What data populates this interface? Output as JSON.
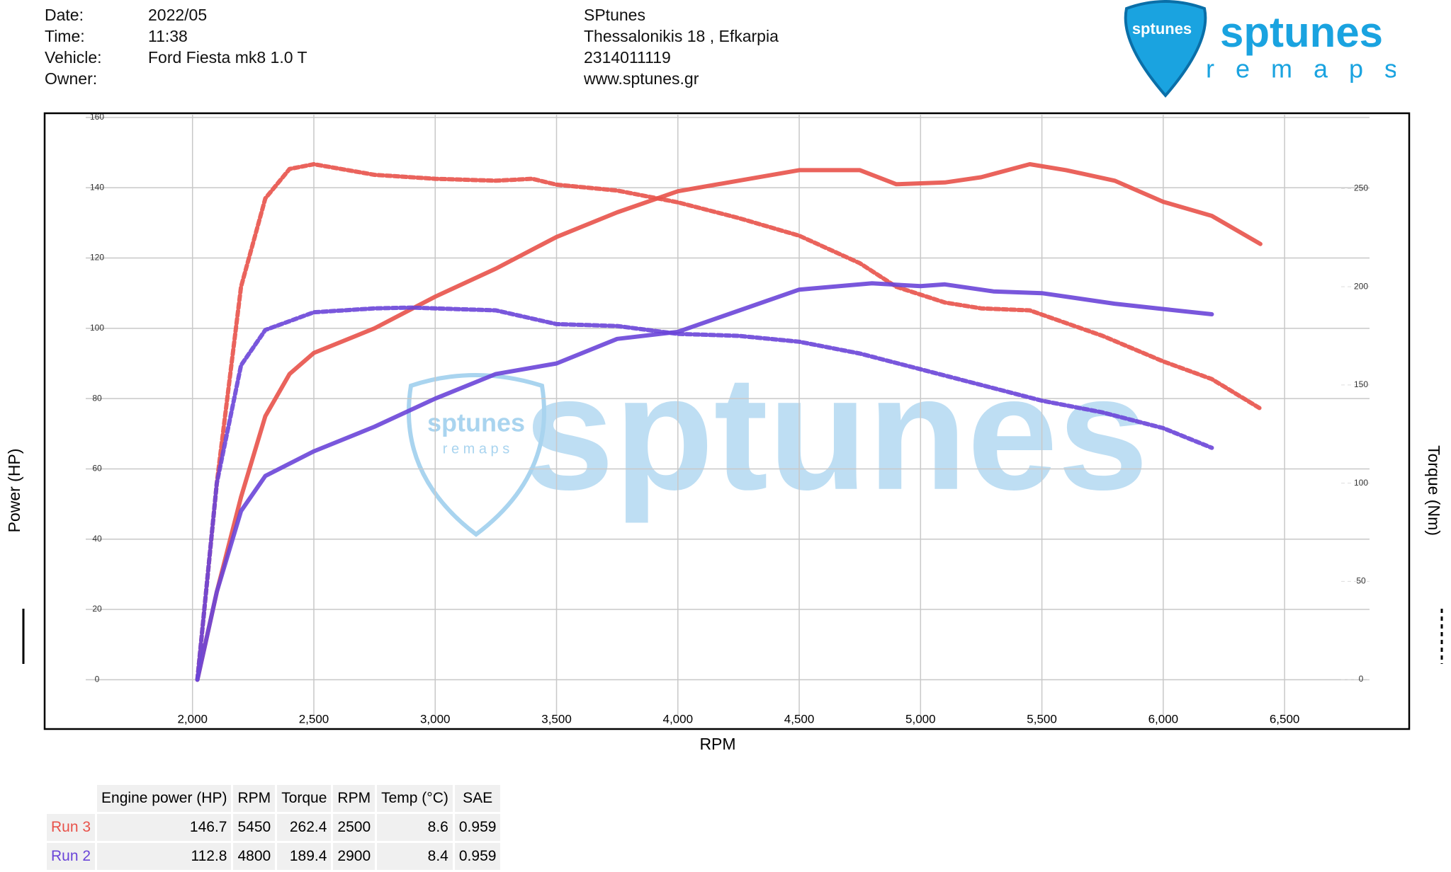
{
  "header": {
    "fields": [
      {
        "label": "Date:",
        "value": "2022/05"
      },
      {
        "label": "Time:",
        "value": "11:38"
      },
      {
        "label": "Vehicle:",
        "value": "Ford Fiesta mk8 1.0 T"
      },
      {
        "label": "Owner:"
      }
    ],
    "company": [
      "SPtunes",
      "Thessalonikis 18 , Efkarpia",
      "2314011119",
      "www.sptunes.gr"
    ]
  },
  "logo": {
    "brand": "sptunes",
    "tagline": "r e m a p s"
  },
  "chart_data": {
    "type": "line",
    "x_label": "RPM",
    "y_label": "Power (HP)",
    "y2_label": "Torque (Nm)",
    "watermark": "sptunes",
    "xlim": [
      1560,
      6850
    ],
    "ylim": [
      -10,
      161
    ],
    "y2lim": [
      -18,
      288
    ],
    "xticks": [
      {
        "value": 2000,
        "label": "2,000"
      },
      {
        "value": 2500,
        "label": "2,500"
      },
      {
        "value": 3000,
        "label": "3,000"
      },
      {
        "value": 3500,
        "label": "3,500"
      },
      {
        "value": 4000,
        "label": "4,000"
      },
      {
        "value": 4500,
        "label": "4,500"
      },
      {
        "value": 5000,
        "label": "5,000"
      },
      {
        "value": 5500,
        "label": "5,500"
      },
      {
        "value": 6000,
        "label": "6,000"
      },
      {
        "value": 6500,
        "label": "6,500"
      }
    ],
    "yticks": [
      0,
      20,
      40,
      60,
      80,
      100,
      120,
      140,
      160
    ],
    "y2ticks": [
      0,
      50,
      100,
      150,
      200,
      250
    ],
    "grid": true,
    "series": [
      {
        "name": "Run 3",
        "color": "#e8524a",
        "x": [
          2020,
          2100,
          2200,
          2300,
          2400,
          2500,
          2750,
          3000,
          3250,
          3500,
          3750,
          4000,
          4250,
          4500,
          4750,
          4900,
          5100,
          5250,
          5450,
          5600,
          5800,
          6000,
          6200,
          6400
        ],
        "values": [
          0,
          25,
          52,
          75,
          87,
          93,
          100,
          109,
          117,
          126,
          133,
          139,
          142,
          145,
          145,
          141,
          141.5,
          143,
          146.7,
          145,
          142,
          136,
          132,
          124
        ]
      },
      {
        "name": "Run 3",
        "color": "#e8524a",
        "axis": "y2",
        "dashed": true,
        "x": [
          2020,
          2100,
          2200,
          2300,
          2400,
          2500,
          2750,
          3000,
          3250,
          3400,
          3500,
          3750,
          4000,
          4250,
          4500,
          4750,
          4900,
          5100,
          5250,
          5450,
          5750,
          6000,
          6200,
          6400
        ],
        "values": [
          0,
          100,
          200,
          245,
          260,
          262.4,
          257,
          255,
          254,
          255,
          252,
          249,
          243,
          235,
          226,
          212,
          200,
          192,
          189,
          188,
          175,
          162,
          153,
          138
        ]
      },
      {
        "name": "Run 2",
        "color": "#6a45d8",
        "x": [
          2020,
          2100,
          2200,
          2300,
          2500,
          2750,
          3000,
          3250,
          3500,
          3750,
          4000,
          4250,
          4500,
          4800,
          5000,
          5100,
          5300,
          5500,
          5800,
          6000,
          6200
        ],
        "values": [
          0,
          25,
          48,
          58,
          65,
          72,
          80,
          87,
          90,
          97,
          99,
          105,
          111,
          112.8,
          112,
          112.5,
          110.5,
          110,
          107,
          105.5,
          104
        ]
      },
      {
        "name": "Run 2",
        "color": "#6a45d8",
        "axis": "y2",
        "dashed": true,
        "x": [
          2020,
          2100,
          2200,
          2300,
          2500,
          2750,
          2900,
          3250,
          3500,
          3750,
          4000,
          4250,
          4500,
          4750,
          5000,
          5250,
          5500,
          5750,
          6000,
          6200
        ],
        "values": [
          0,
          100,
          160,
          178,
          187,
          189,
          189.4,
          188,
          181,
          180,
          176,
          175,
          172,
          166,
          158,
          150,
          142,
          136,
          128,
          118
        ]
      }
    ]
  },
  "table": {
    "columns": [
      "Engine power (HP)",
      "RPM",
      "Torque",
      "RPM",
      "Temp (°C)",
      "SAE"
    ],
    "rows": [
      {
        "name": "Run 3",
        "color": "#e8524a",
        "cells": [
          146.7,
          5450,
          262.4,
          2500,
          8.6,
          0.959
        ]
      },
      {
        "name": "Run 2",
        "color": "#6a45d8",
        "cells": [
          112.8,
          4800,
          189.4,
          2900,
          8.4,
          0.959
        ]
      }
    ]
  }
}
